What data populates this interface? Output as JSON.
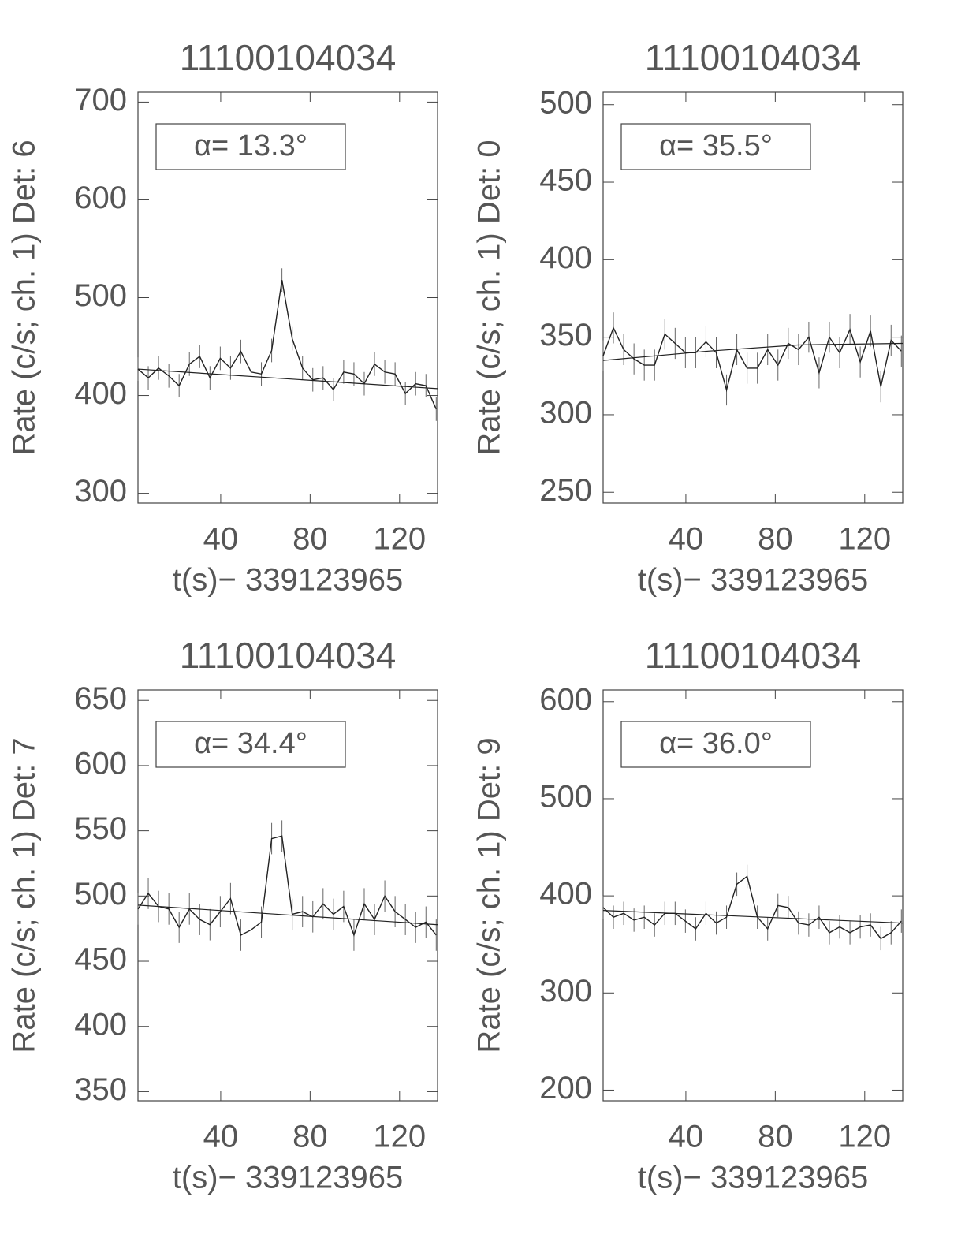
{
  "chart_data": [
    {
      "type": "line",
      "title": "11100104034",
      "xlabel": "t(s)− 339123965",
      "ylabel": "Rate (c/s; ch. 1) Det: 6",
      "annotation": "α= 13.3°",
      "xlim": [
        3,
        137
      ],
      "xticks": [
        40,
        80,
        120
      ],
      "ylim": [
        290,
        710
      ],
      "yticks": [
        300,
        400,
        500,
        600,
        700
      ],
      "x": [
        3,
        7.6,
        12.2,
        16.8,
        21.4,
        26,
        30.6,
        35.2,
        39.8,
        44.4,
        49,
        53.6,
        58.2,
        62.8,
        67.4,
        72,
        76.6,
        81.2,
        85.8,
        90.4,
        95,
        99.6,
        104.2,
        108.8,
        113.4,
        118,
        122.6,
        127.2,
        131.8,
        136.4
      ],
      "values": [
        427,
        418,
        428,
        420,
        410,
        432,
        440,
        418,
        438,
        428,
        445,
        424,
        422,
        446,
        518,
        458,
        428,
        416,
        418,
        406,
        424,
        422,
        412,
        432,
        424,
        422,
        402,
        412,
        410,
        386
      ],
      "error": 12,
      "fit": {
        "x": [
          3,
          137
        ],
        "values": [
          427,
          407
        ]
      },
      "color": "#222222"
    },
    {
      "type": "line",
      "title": "11100104034",
      "xlabel": "t(s)− 339123965",
      "ylabel": "Rate (c/s; ch. 1) Det: 0",
      "annotation": "α= 35.5°",
      "xlim": [
        3,
        137
      ],
      "xticks": [
        40,
        80,
        120
      ],
      "ylim": [
        243,
        508
      ],
      "yticks": [
        250,
        300,
        350,
        400,
        450,
        500
      ],
      "x": [
        3,
        7.6,
        12.2,
        16.8,
        21.4,
        26,
        30.6,
        35.2,
        39.8,
        44.4,
        49,
        53.6,
        58.2,
        62.8,
        67.4,
        72,
        76.6,
        81.2,
        85.8,
        90.4,
        95,
        99.6,
        104.2,
        108.8,
        113.4,
        118,
        122.6,
        127.2,
        131.8,
        136.4
      ],
      "values": [
        338,
        356,
        342,
        336,
        332,
        332,
        352,
        346,
        340,
        340,
        347,
        340,
        316,
        342,
        330,
        330,
        342,
        332,
        346,
        342,
        350,
        327,
        350,
        340,
        355,
        334,
        354,
        318,
        348,
        341
      ],
      "error": 10,
      "fit": {
        "x": [
          3,
          50,
          90,
          137
        ],
        "values": [
          335,
          341,
          345,
          346
        ]
      },
      "color": "#222222"
    },
    {
      "type": "line",
      "title": "11100104034",
      "xlabel": "t(s)− 339123965",
      "ylabel": "Rate (c/s; ch. 1) Det: 7",
      "annotation": "α= 34.4°",
      "xlim": [
        3,
        137
      ],
      "xticks": [
        40,
        80,
        120
      ],
      "ylim": [
        343,
        658
      ],
      "yticks": [
        350,
        400,
        450,
        500,
        550,
        600,
        650
      ],
      "x": [
        3,
        7.6,
        12.2,
        16.8,
        21.4,
        26,
        30.6,
        35.2,
        39.8,
        44.4,
        49,
        53.6,
        58.2,
        62.8,
        67.4,
        72,
        76.6,
        81.2,
        85.8,
        90.4,
        95,
        99.6,
        104.2,
        108.8,
        113.4,
        118,
        122.6,
        127.2,
        131.8,
        136.4
      ],
      "values": [
        490,
        502,
        492,
        490,
        476,
        490,
        482,
        478,
        488,
        498,
        470,
        474,
        480,
        544,
        546,
        486,
        488,
        484,
        494,
        486,
        492,
        470,
        494,
        482,
        500,
        488,
        482,
        476,
        480,
        470
      ],
      "error": 12,
      "fit": {
        "x": [
          3,
          137
        ],
        "values": [
          493,
          478
        ]
      },
      "color": "#222222"
    },
    {
      "type": "line",
      "title": "11100104034",
      "xlabel": "t(s)− 339123965",
      "ylabel": "Rate (c/s; ch. 1) Det: 9",
      "annotation": "α= 36.0°",
      "xlim": [
        3,
        137
      ],
      "xticks": [
        40,
        80,
        120
      ],
      "ylim": [
        189,
        612
      ],
      "yticks": [
        200,
        300,
        400,
        500,
        600
      ],
      "x": [
        3,
        7.6,
        12.2,
        16.8,
        21.4,
        26,
        30.6,
        35.2,
        39.8,
        44.4,
        49,
        53.6,
        58.2,
        62.8,
        67.4,
        72,
        76.6,
        81.2,
        85.8,
        90.4,
        95,
        99.6,
        104.2,
        108.8,
        113.4,
        118,
        122.6,
        127.2,
        131.8,
        136.4
      ],
      "values": [
        388,
        378,
        382,
        375,
        378,
        370,
        382,
        382,
        374,
        366,
        382,
        372,
        378,
        412,
        420,
        378,
        366,
        390,
        388,
        372,
        370,
        378,
        362,
        368,
        362,
        368,
        370,
        356,
        362,
        374
      ],
      "error": 12,
      "fit": {
        "x": [
          3,
          137
        ],
        "values": [
          385,
          372
        ]
      },
      "color": "#222222"
    }
  ]
}
